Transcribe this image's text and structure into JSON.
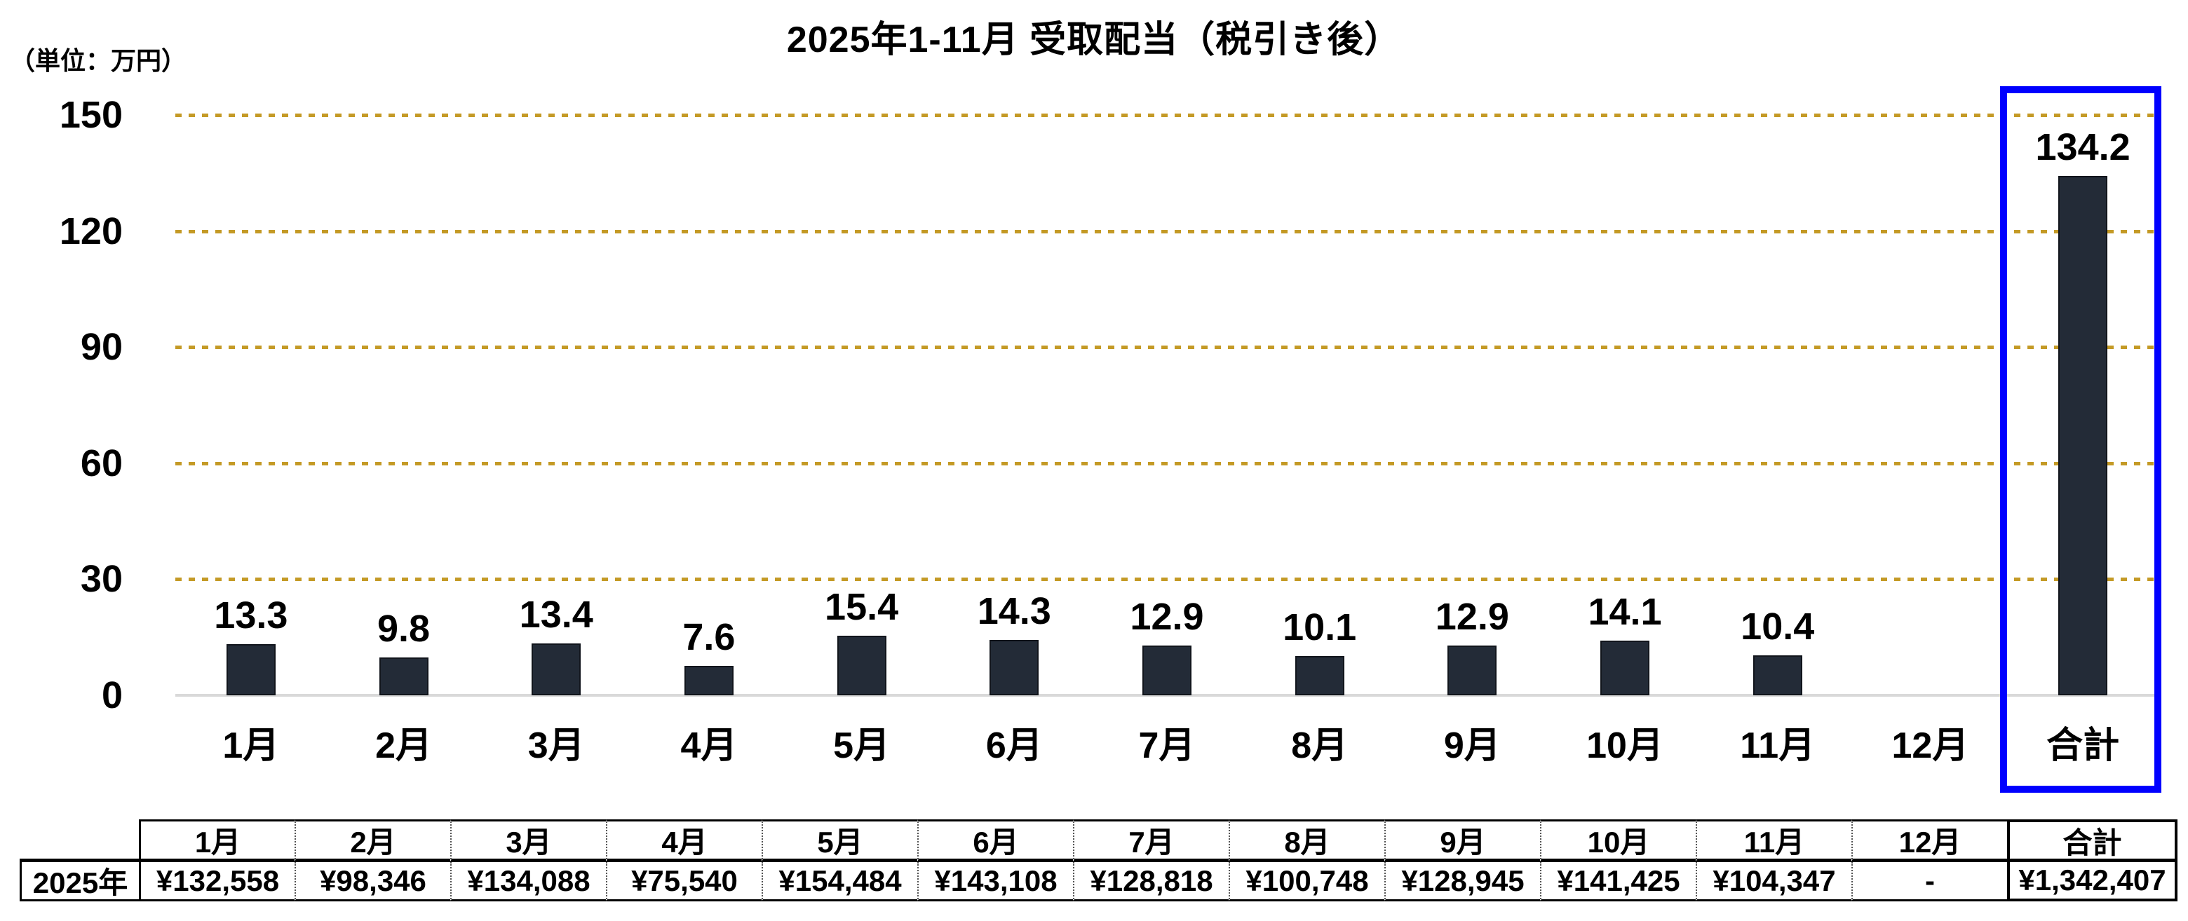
{
  "title": "2025年1-11月 受取配当（税引き後）",
  "unit_label": "（単位：万円）",
  "colors": {
    "bar": "#232B37",
    "bar_border": "#11151C",
    "gridline": "#C49A26",
    "zero_line": "#D9D9D9",
    "highlight_box": "#0000FF",
    "text": "#000000"
  },
  "chart_data": {
    "type": "bar",
    "title": "2025年1-11月 受取配当（税引き後）",
    "unit": "万円",
    "categories": [
      "1月",
      "2月",
      "3月",
      "4月",
      "5月",
      "6月",
      "7月",
      "8月",
      "9月",
      "10月",
      "11月",
      "12月",
      "合計"
    ],
    "values": [
      13.3,
      9.8,
      13.4,
      7.6,
      15.4,
      14.3,
      12.9,
      10.1,
      12.9,
      14.1,
      10.4,
      null,
      134.2
    ],
    "data_labels": [
      "13.3",
      "9.8",
      "13.4",
      "7.6",
      "15.4",
      "14.3",
      "12.9",
      "10.1",
      "12.9",
      "14.1",
      "10.4",
      "",
      "134.2"
    ],
    "xlabel": "",
    "ylabel": "万円",
    "ylim": [
      0,
      150
    ],
    "y_ticks": [
      0,
      30,
      60,
      90,
      120,
      150
    ],
    "grid": "horizontal dotted, orange, every 30",
    "legend": "none",
    "highlight": {
      "category": "合計",
      "style": "blue outline box around column"
    }
  },
  "table": {
    "row_header": "2025年",
    "columns": [
      "1月",
      "2月",
      "3月",
      "4月",
      "5月",
      "6月",
      "7月",
      "8月",
      "9月",
      "10月",
      "11月",
      "12月",
      "合計"
    ],
    "values": [
      "¥132,558",
      "¥98,346",
      "¥134,088",
      "¥75,540",
      "¥154,484",
      "¥143,108",
      "¥128,818",
      "¥100,748",
      "¥128,945",
      "¥141,425",
      "¥104,347",
      "-",
      "¥1,342,407"
    ]
  }
}
